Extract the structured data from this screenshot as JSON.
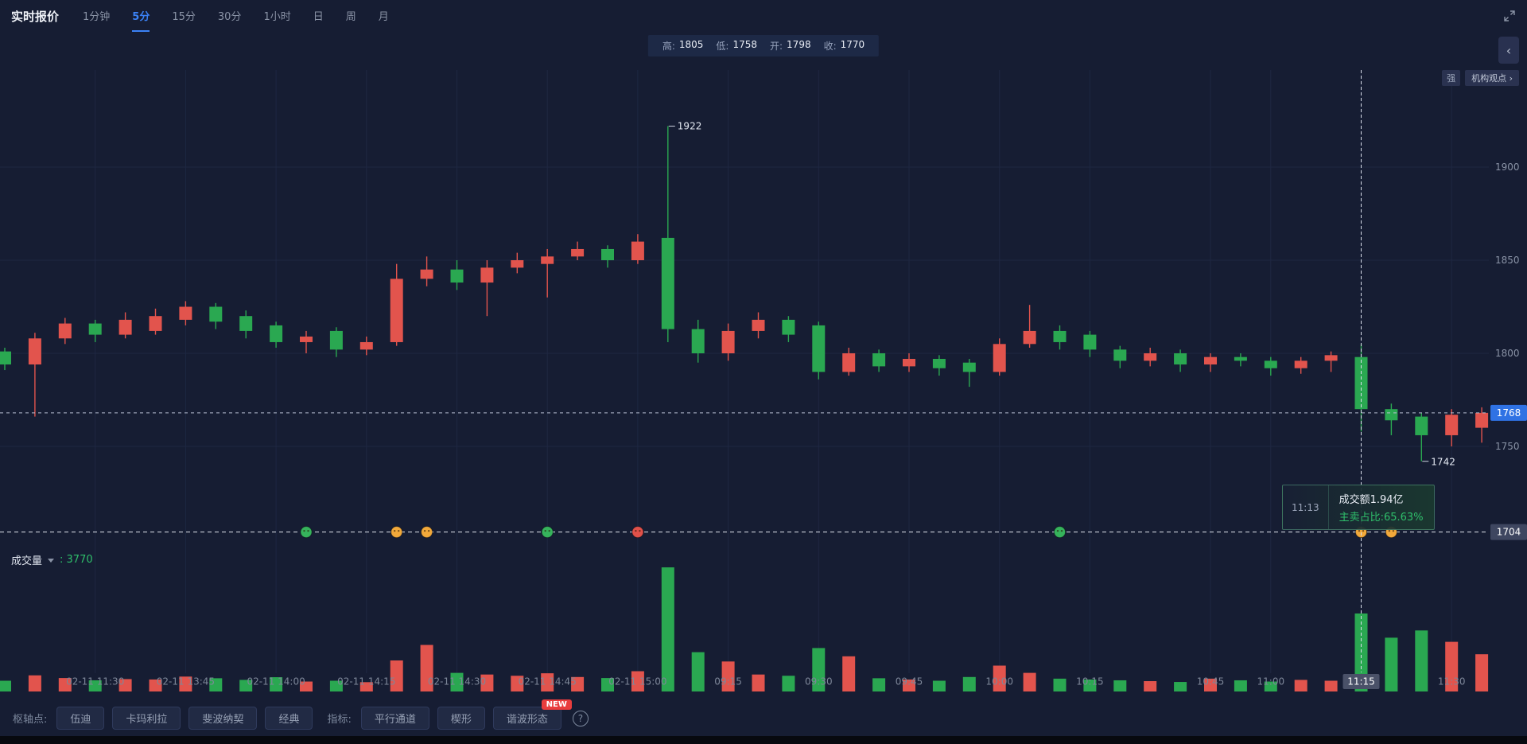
{
  "header": {
    "title": "实时报价",
    "tabs": [
      {
        "label": "1分钟",
        "active": false
      },
      {
        "label": "5分",
        "active": true
      },
      {
        "label": "15分",
        "active": false
      },
      {
        "label": "30分",
        "active": false
      },
      {
        "label": "1小时",
        "active": false
      },
      {
        "label": "日",
        "active": false
      },
      {
        "label": "周",
        "active": false
      },
      {
        "label": "月",
        "active": false
      }
    ]
  },
  "ohlc_bar": {
    "pairs": [
      {
        "label": "高:",
        "value": "1805"
      },
      {
        "label": "低:",
        "value": "1758"
      },
      {
        "label": "开:",
        "value": "1798"
      },
      {
        "label": "收:",
        "value": "1770"
      }
    ]
  },
  "top_right": {
    "strength_badge": "强",
    "viewpoint": "机构观点 ›"
  },
  "crosshair_tooltip": {
    "time": "11:13",
    "line1": "成交额1.94亿",
    "line2": "主卖占比:65.63%"
  },
  "volume_header": {
    "label": "成交量",
    "value": ": 3770"
  },
  "toolbar": {
    "pivot_label": "枢轴点:",
    "pivot_buttons": [
      "伍迪",
      "卡玛利拉",
      "斐波纳契",
      "经典"
    ],
    "indicator_label": "指标:",
    "indicator_buttons": [
      "平行通道",
      "楔形",
      "谐波形态"
    ],
    "new_badge": "NEW",
    "help": "?"
  },
  "chart_data": {
    "type": "candlestick+volume",
    "up_color": "#e2544d",
    "down_color": "#2aa851",
    "accent_blue": "#2f72e4",
    "price_ticks": [
      1900,
      1850,
      1800,
      1750
    ],
    "ylim": [
      1704,
      1952
    ],
    "last_price": 1768,
    "bottom_line_price": 1704,
    "crosshair_index": 45,
    "high_annotation": {
      "index": 22,
      "price": 1922,
      "label": "1922"
    },
    "low_annotation": {
      "index": 47,
      "price": 1742,
      "label": "1742"
    },
    "time_labels": [
      {
        "index": 3,
        "label": "02-11 11:30"
      },
      {
        "index": 6,
        "label": "02-11 13:45"
      },
      {
        "index": 9,
        "label": "02-11 14:00"
      },
      {
        "index": 12,
        "label": "02-11 14:15"
      },
      {
        "index": 15,
        "label": "02-11 14:30"
      },
      {
        "index": 18,
        "label": "02-11 14:45"
      },
      {
        "index": 21,
        "label": "02-11 15:00"
      },
      {
        "index": 24,
        "label": "09:15"
      },
      {
        "index": 27,
        "label": "09:30"
      },
      {
        "index": 30,
        "label": "09:45"
      },
      {
        "index": 33,
        "label": "10:00"
      },
      {
        "index": 36,
        "label": "10:15"
      },
      {
        "index": 40,
        "label": "10:45"
      },
      {
        "index": 42,
        "label": "11:00"
      },
      {
        "index": 45,
        "label": "11:15"
      },
      {
        "index": 48,
        "label": "11:30"
      }
    ],
    "candles": [
      [
        1801,
        1803,
        1791,
        1794
      ],
      [
        1794,
        1811,
        1766,
        1808
      ],
      [
        1808,
        1819,
        1805,
        1816
      ],
      [
        1816,
        1818,
        1806,
        1810
      ],
      [
        1810,
        1822,
        1808,
        1818
      ],
      [
        1812,
        1824,
        1810,
        1820
      ],
      [
        1818,
        1828,
        1815,
        1825
      ],
      [
        1825,
        1827,
        1813,
        1817
      ],
      [
        1820,
        1823,
        1808,
        1812
      ],
      [
        1815,
        1817,
        1803,
        1806
      ],
      [
        1806,
        1812,
        1800,
        1809
      ],
      [
        1812,
        1814,
        1798,
        1802
      ],
      [
        1802,
        1809,
        1799,
        1806
      ],
      [
        1806,
        1848,
        1804,
        1840
      ],
      [
        1840,
        1852,
        1836,
        1845
      ],
      [
        1845,
        1850,
        1834,
        1838
      ],
      [
        1838,
        1850,
        1820,
        1846
      ],
      [
        1846,
        1854,
        1843,
        1850
      ],
      [
        1848,
        1856,
        1830,
        1852
      ],
      [
        1852,
        1860,
        1850,
        1856
      ],
      [
        1856,
        1858,
        1846,
        1850
      ],
      [
        1850,
        1864,
        1848,
        1860
      ],
      [
        1862,
        1922,
        1806,
        1813
      ],
      [
        1813,
        1818,
        1795,
        1800
      ],
      [
        1800,
        1816,
        1796,
        1812
      ],
      [
        1812,
        1822,
        1808,
        1818
      ],
      [
        1818,
        1820,
        1806,
        1810
      ],
      [
        1815,
        1817,
        1786,
        1790
      ],
      [
        1790,
        1803,
        1788,
        1800
      ],
      [
        1800,
        1802,
        1790,
        1793
      ],
      [
        1793,
        1800,
        1790,
        1797
      ],
      [
        1797,
        1799,
        1788,
        1792
      ],
      [
        1795,
        1797,
        1782,
        1790
      ],
      [
        1790,
        1808,
        1788,
        1805
      ],
      [
        1805,
        1826,
        1803,
        1812
      ],
      [
        1812,
        1815,
        1802,
        1806
      ],
      [
        1810,
        1812,
        1798,
        1802
      ],
      [
        1802,
        1804,
        1792,
        1796
      ],
      [
        1796,
        1803,
        1793,
        1800
      ],
      [
        1800,
        1802,
        1790,
        1794
      ],
      [
        1794,
        1800,
        1790,
        1798
      ],
      [
        1798,
        1800,
        1793,
        1796
      ],
      [
        1796,
        1798,
        1788,
        1792
      ],
      [
        1792,
        1798,
        1789,
        1796
      ],
      [
        1796,
        1801,
        1790,
        1799
      ],
      [
        1798,
        1805,
        1758,
        1770
      ],
      [
        1770,
        1773,
        1756,
        1764
      ],
      [
        1766,
        1768,
        1742,
        1756
      ],
      [
        1756,
        1770,
        1750,
        1767
      ],
      [
        1760,
        1771,
        1752,
        1768
      ]
    ],
    "volumes": [
      520,
      780,
      650,
      540,
      600,
      580,
      720,
      640,
      560,
      690,
      480,
      520,
      450,
      1500,
      2250,
      900,
      820,
      760,
      880,
      700,
      650,
      980,
      6000,
      1900,
      1450,
      820,
      760,
      2100,
      1700,
      640,
      580,
      520,
      700,
      1250,
      900,
      620,
      580,
      540,
      500,
      460,
      620,
      540,
      480,
      560,
      520,
      3770,
      2600,
      2950,
      2400,
      1800
    ],
    "markers": [
      {
        "index": 10,
        "color": "#36b35c"
      },
      {
        "index": 13,
        "color": "#f2a93b"
      },
      {
        "index": 14,
        "color": "#f2a93b"
      },
      {
        "index": 18,
        "color": "#36b35c"
      },
      {
        "index": 21,
        "color": "#e0514a"
      },
      {
        "index": 35,
        "color": "#36b35c"
      },
      {
        "index": 45,
        "color": "#f2a93b"
      },
      {
        "index": 46,
        "color": "#f2a93b"
      }
    ]
  }
}
